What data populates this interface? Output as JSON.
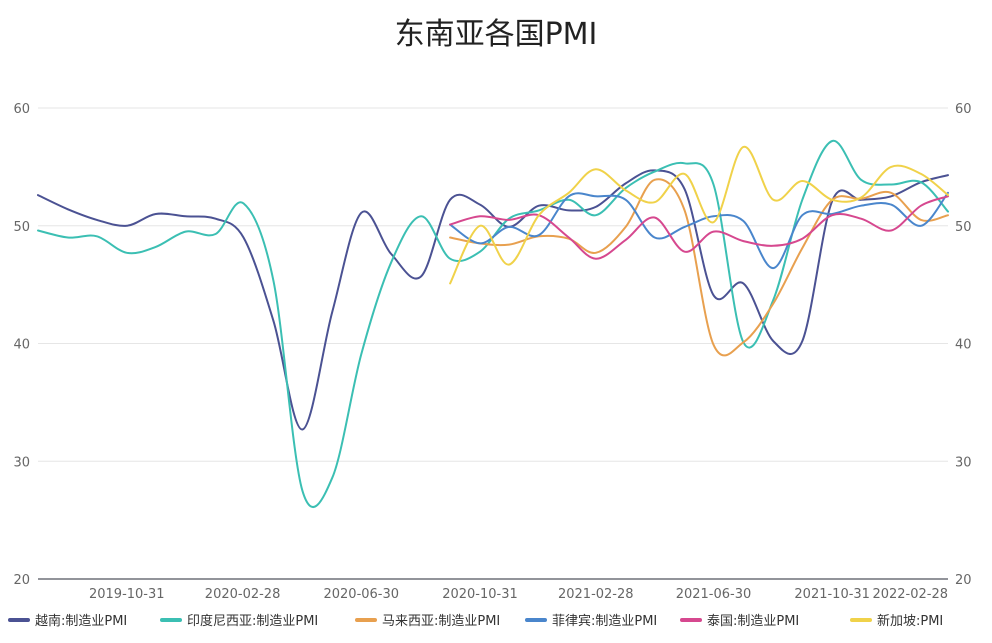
{
  "chart_data": {
    "type": "line",
    "title": "东南亚各国PMI",
    "xlabel": "",
    "ylabel": "",
    "ylim": [
      20,
      60
    ],
    "yticks": [
      20,
      30,
      40,
      50,
      60
    ],
    "y_right_axis": true,
    "x_range": [
      "2019-07-31",
      "2022-02-28"
    ],
    "x_tick_labels": [
      "2019-10-31",
      "2020-02-28",
      "2020-06-30",
      "2020-10-31",
      "2021-02-28",
      "2021-06-30",
      "2021-10-31",
      "2022-02-28"
    ],
    "grid": true,
    "legend_position": "bottom",
    "series": [
      {
        "name": "越南:制造业PMI",
        "color": "#4b5293",
        "points": [
          [
            "2019-07-31",
            52.6
          ],
          [
            "2019-08-31",
            51.4
          ],
          [
            "2019-09-30",
            50.5
          ],
          [
            "2019-10-31",
            50.0
          ],
          [
            "2019-11-30",
            51.0
          ],
          [
            "2019-12-31",
            50.8
          ],
          [
            "2020-01-31",
            50.6
          ],
          [
            "2020-02-29",
            49.0
          ],
          [
            "2020-03-31",
            41.9
          ],
          [
            "2020-04-30",
            32.7
          ],
          [
            "2020-05-31",
            42.7
          ],
          [
            "2020-06-30",
            51.1
          ],
          [
            "2020-07-31",
            47.6
          ],
          [
            "2020-08-31",
            45.7
          ],
          [
            "2020-09-30",
            52.2
          ],
          [
            "2020-10-31",
            51.8
          ],
          [
            "2020-11-30",
            49.9
          ],
          [
            "2020-12-31",
            51.7
          ],
          [
            "2021-01-31",
            51.3
          ],
          [
            "2021-02-28",
            51.6
          ],
          [
            "2021-03-31",
            53.6
          ],
          [
            "2021-04-30",
            54.7
          ],
          [
            "2021-05-31",
            53.1
          ],
          [
            "2021-06-30",
            44.1
          ],
          [
            "2021-07-31",
            45.1
          ],
          [
            "2021-08-31",
            40.2
          ],
          [
            "2021-09-30",
            40.2
          ],
          [
            "2021-10-31",
            52.1
          ],
          [
            "2021-11-30",
            52.2
          ],
          [
            "2021-12-31",
            52.5
          ],
          [
            "2022-01-31",
            53.7
          ],
          [
            "2022-02-28",
            54.3
          ]
        ]
      },
      {
        "name": "印度尼西亚:制造业PMI",
        "color": "#3bbfb3",
        "points": [
          [
            "2019-07-31",
            49.6
          ],
          [
            "2019-08-31",
            49.0
          ],
          [
            "2019-09-30",
            49.1
          ],
          [
            "2019-10-31",
            47.7
          ],
          [
            "2019-11-30",
            48.2
          ],
          [
            "2019-12-31",
            49.5
          ],
          [
            "2020-01-31",
            49.3
          ],
          [
            "2020-02-29",
            51.9
          ],
          [
            "2020-03-31",
            45.3
          ],
          [
            "2020-04-30",
            27.5
          ],
          [
            "2020-05-31",
            28.6
          ],
          [
            "2020-06-30",
            39.1
          ],
          [
            "2020-07-31",
            46.9
          ],
          [
            "2020-08-31",
            50.8
          ],
          [
            "2020-09-30",
            47.2
          ],
          [
            "2020-10-31",
            47.8
          ],
          [
            "2020-11-30",
            50.6
          ],
          [
            "2020-12-31",
            51.3
          ],
          [
            "2021-01-31",
            52.2
          ],
          [
            "2021-02-28",
            50.9
          ],
          [
            "2021-03-31",
            53.2
          ],
          [
            "2021-04-30",
            54.6
          ],
          [
            "2021-05-31",
            55.3
          ],
          [
            "2021-06-30",
            53.5
          ],
          [
            "2021-07-31",
            40.1
          ],
          [
            "2021-08-31",
            43.7
          ],
          [
            "2021-09-30",
            52.2
          ],
          [
            "2021-10-31",
            57.2
          ],
          [
            "2021-11-30",
            53.9
          ],
          [
            "2021-12-31",
            53.5
          ],
          [
            "2022-01-31",
            53.7
          ],
          [
            "2022-02-28",
            51.2
          ]
        ]
      },
      {
        "name": "马来西亚:制造业PMI",
        "color": "#e8a04f",
        "points": [
          [
            "2020-09-30",
            49.0
          ],
          [
            "2020-10-31",
            48.5
          ],
          [
            "2020-11-30",
            48.4
          ],
          [
            "2020-12-31",
            49.1
          ],
          [
            "2021-01-31",
            48.9
          ],
          [
            "2021-02-28",
            47.7
          ],
          [
            "2021-03-31",
            49.9
          ],
          [
            "2021-04-30",
            53.9
          ],
          [
            "2021-05-31",
            51.3
          ],
          [
            "2021-06-30",
            39.9
          ],
          [
            "2021-07-31",
            40.1
          ],
          [
            "2021-08-31",
            43.4
          ],
          [
            "2021-09-30",
            48.1
          ],
          [
            "2021-10-31",
            52.2
          ],
          [
            "2021-11-30",
            52.3
          ],
          [
            "2021-12-31",
            52.8
          ],
          [
            "2022-01-31",
            50.5
          ],
          [
            "2022-02-28",
            50.9
          ]
        ]
      },
      {
        "name": "菲律宾:制造业PMI",
        "color": "#4a86cc",
        "points": [
          [
            "2020-09-30",
            50.1
          ],
          [
            "2020-10-31",
            48.5
          ],
          [
            "2020-11-30",
            49.9
          ],
          [
            "2020-12-31",
            49.2
          ],
          [
            "2021-01-31",
            52.5
          ],
          [
            "2021-02-28",
            52.5
          ],
          [
            "2021-03-31",
            52.2
          ],
          [
            "2021-04-30",
            49.0
          ],
          [
            "2021-05-31",
            49.9
          ],
          [
            "2021-06-30",
            50.8
          ],
          [
            "2021-07-31",
            50.4
          ],
          [
            "2021-08-31",
            46.4
          ],
          [
            "2021-09-30",
            50.9
          ],
          [
            "2021-10-31",
            51.0
          ],
          [
            "2021-11-30",
            51.7
          ],
          [
            "2021-12-31",
            51.8
          ],
          [
            "2022-01-31",
            50.0
          ],
          [
            "2022-02-28",
            52.8
          ]
        ]
      },
      {
        "name": "泰国:制造业PMI",
        "color": "#d6488f",
        "points": [
          [
            "2020-09-30",
            50.1
          ],
          [
            "2020-10-31",
            50.8
          ],
          [
            "2020-11-30",
            50.5
          ],
          [
            "2020-12-31",
            50.9
          ],
          [
            "2021-01-31",
            49.0
          ],
          [
            "2021-02-28",
            47.2
          ],
          [
            "2021-03-31",
            48.8
          ],
          [
            "2021-04-30",
            50.7
          ],
          [
            "2021-05-31",
            47.8
          ],
          [
            "2021-06-30",
            49.5
          ],
          [
            "2021-07-31",
            48.7
          ],
          [
            "2021-08-31",
            48.3
          ],
          [
            "2021-09-30",
            48.9
          ],
          [
            "2021-10-31",
            50.9
          ],
          [
            "2021-11-30",
            50.6
          ],
          [
            "2021-12-31",
            49.6
          ],
          [
            "2022-01-31",
            51.7
          ],
          [
            "2022-02-28",
            52.5
          ]
        ]
      },
      {
        "name": "新加坡:PMI",
        "color": "#f0d24a",
        "points": [
          [
            "2020-09-30",
            45.1
          ],
          [
            "2020-10-31",
            50.0
          ],
          [
            "2020-11-30",
            46.7
          ],
          [
            "2020-12-31",
            50.9
          ],
          [
            "2021-01-31",
            52.8
          ],
          [
            "2021-02-28",
            54.8
          ],
          [
            "2021-03-31",
            53.0
          ],
          [
            "2021-04-30",
            52.0
          ],
          [
            "2021-05-31",
            54.4
          ],
          [
            "2021-06-30",
            50.3
          ],
          [
            "2021-07-31",
            56.7
          ],
          [
            "2021-08-31",
            52.2
          ],
          [
            "2021-09-30",
            53.8
          ],
          [
            "2021-10-31",
            52.2
          ],
          [
            "2021-11-30",
            52.4
          ],
          [
            "2021-12-31",
            55.0
          ],
          [
            "2022-01-31",
            54.4
          ],
          [
            "2022-02-28",
            52.6
          ]
        ]
      }
    ]
  }
}
